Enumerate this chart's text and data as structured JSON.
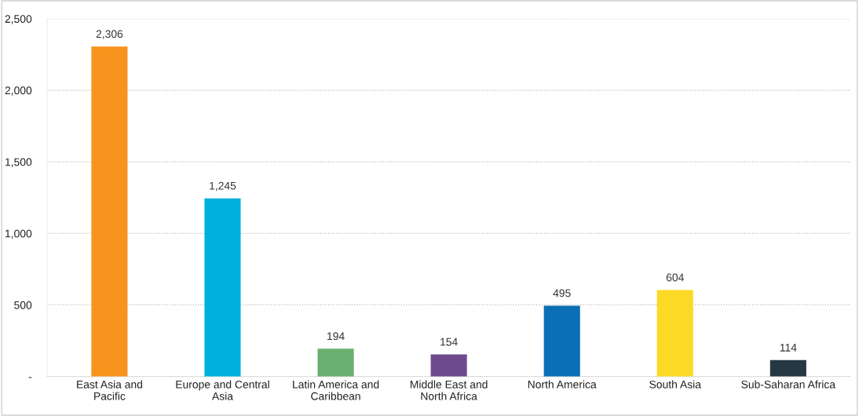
{
  "chart_data": {
    "type": "bar",
    "categories": [
      "East Asia and Pacific",
      "Europe and Central Asia",
      "Latin America and Caribbean",
      "Middle East and North Africa",
      "North America",
      "South Asia",
      "Sub-Saharan Africa"
    ],
    "values": [
      2306,
      1245,
      194,
      154,
      495,
      604,
      114
    ],
    "colors": [
      "#f7941d",
      "#00b0dc",
      "#6aaf6f",
      "#6f4a8e",
      "#0b6fb5",
      "#fcd925",
      "#263841"
    ],
    "ylim": [
      0,
      2500
    ],
    "yticks": [
      {
        "value": 0,
        "label": "-"
      },
      {
        "value": 500,
        "label": "500"
      },
      {
        "value": 1000,
        "label": "1,000"
      },
      {
        "value": 1500,
        "label": "1,500"
      },
      {
        "value": 2000,
        "label": "2,000"
      },
      {
        "value": 2500,
        "label": "2,500"
      }
    ],
    "value_labels": [
      "2,306",
      "1,245",
      "194",
      "154",
      "495",
      "604",
      "114"
    ],
    "grid": "y",
    "legend": false
  }
}
